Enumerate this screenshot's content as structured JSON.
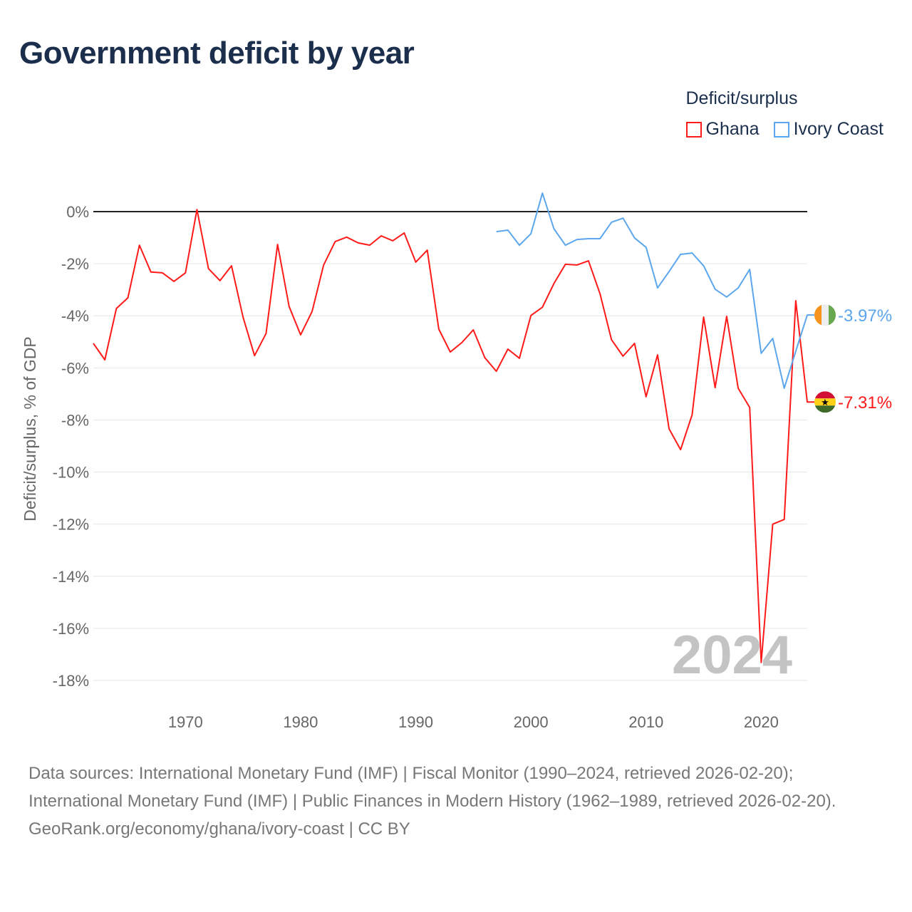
{
  "title": "Government deficit by year",
  "legend": {
    "title": "Deficit/surplus"
  },
  "footer": {
    "sources": "Data sources: International Monetary Fund (IMF) | Fiscal Monitor (1990–2024, retrieved 2026-02-20); International Monetary Fund (IMF) | Public Finances in Modern History (1962–1989, retrieved 2026-02-20).",
    "credit": "GeoRank.org/economy/ghana/ivory-coast | CC BY"
  },
  "chart_data": {
    "type": "line",
    "title": "Government deficit by year",
    "ylabel": "Deficit/surplus, % of GDP",
    "xlabel": "",
    "xlim": [
      1962,
      2024
    ],
    "ylim": [
      -18,
      0
    ],
    "x_ticks": [
      1970,
      1980,
      1990,
      2000,
      2010,
      2020
    ],
    "y_ticks": [
      0,
      -2,
      -4,
      -6,
      -8,
      -10,
      -12,
      -14,
      -16,
      -18
    ],
    "y_tick_labels": [
      "0%",
      "-2%",
      "-4%",
      "-6%",
      "-8%",
      "-10%",
      "-12%",
      "-14%",
      "-16%",
      "-18%"
    ],
    "grid": true,
    "legend_position": "top-right",
    "year_watermark": "2024",
    "series": [
      {
        "name": "Ghana",
        "color": "#ff1a1a",
        "end_label": "-7.31%",
        "x_start": 1962,
        "values": [
          -5.06,
          -5.69,
          -3.72,
          -3.31,
          -1.29,
          -2.32,
          -2.35,
          -2.68,
          -2.35,
          0.08,
          -2.19,
          -2.65,
          -2.08,
          -4.05,
          -5.53,
          -4.68,
          -1.26,
          -3.64,
          -4.73,
          -3.83,
          -2.05,
          -1.15,
          -0.98,
          -1.2,
          -1.29,
          -0.93,
          -1.12,
          -0.82,
          -1.94,
          -1.48,
          -4.51,
          -5.39,
          -5.03,
          -4.54,
          -5.61,
          -6.13,
          -5.28,
          -5.63,
          -3.99,
          -3.67,
          -2.76,
          -2.02,
          -2.05,
          -1.89,
          -3.15,
          -4.92,
          -5.55,
          -5.06,
          -7.11,
          -5.5,
          -8.34,
          -9.14,
          -7.8,
          -4.05,
          -6.76,
          -4.02,
          -6.78,
          -7.52,
          -17.31,
          -12.0,
          -11.82,
          -3.42,
          -7.31
        ]
      },
      {
        "name": "Ivory Coast",
        "color": "#5ba6ec",
        "end_label": "-3.97%",
        "x_start": 1997,
        "values": [
          -0.77,
          -0.71,
          -1.29,
          -0.85,
          0.71,
          -0.66,
          -1.29,
          -1.07,
          -1.04,
          -1.04,
          -0.41,
          -0.25,
          -1.01,
          -1.37,
          -2.93,
          -2.3,
          -1.64,
          -1.59,
          -2.08,
          -2.98,
          -3.28,
          -2.93,
          -2.22,
          -5.44,
          -4.87,
          -6.78,
          -5.36,
          -3.97
        ]
      }
    ]
  }
}
